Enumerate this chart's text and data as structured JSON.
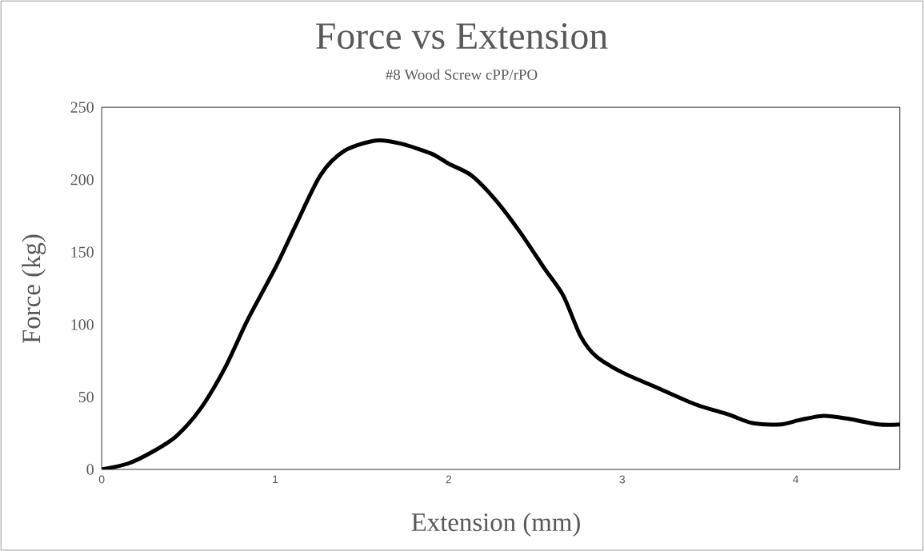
{
  "chart_data": {
    "type": "line",
    "title": "Force vs Extension",
    "subtitle": "#8 Wood Screw cPP/rPO",
    "xlabel": "Extension (mm)",
    "ylabel": "Force (kg)",
    "color": "#000000",
    "line_style": "solid",
    "x": [
      0,
      0.15,
      0.29,
      0.43,
      0.57,
      0.71,
      0.84,
      1.0,
      1.12,
      1.26,
      1.4,
      1.58,
      1.72,
      1.9,
      2.0,
      2.13,
      2.27,
      2.41,
      2.55,
      2.66,
      2.76,
      2.85,
      3.0,
      3.19,
      3.42,
      3.61,
      3.75,
      3.91,
      4.02,
      4.16,
      4.3,
      4.48,
      4.6
    ],
    "values": [
      0,
      4,
      12,
      23,
      42,
      70,
      103,
      139,
      169,
      203,
      220,
      227,
      225,
      218,
      211,
      203,
      186,
      164,
      139,
      120,
      92,
      78,
      67,
      57,
      45,
      38,
      32,
      31,
      34,
      37,
      35,
      31,
      31
    ],
    "xlim": [
      0,
      4.6
    ],
    "ylim": [
      0,
      250
    ],
    "xticks": [
      0,
      1,
      2,
      3,
      4
    ],
    "yticks": [
      0,
      50,
      100,
      150,
      200,
      250
    ]
  }
}
